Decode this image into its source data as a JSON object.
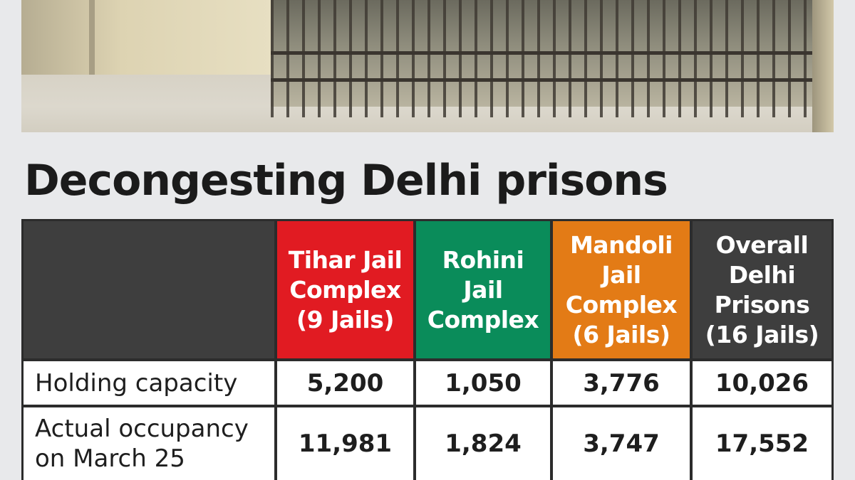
{
  "heading": "Decongesting Delhi prisons",
  "colors": {
    "tihar": "#e11b22",
    "rohini": "#0a8c5a",
    "mandoli": "#e37b16",
    "overall": "#3e3e3e"
  },
  "table": {
    "columns": [
      "Tihar Jail\nComplex\n(9 Jails)",
      "Rohini\nJail\nComplex",
      "Mandoli\nJail\nComplex\n(6 Jails)",
      "Overall\nDelhi\nPrisons\n(16 Jails)"
    ],
    "rows": [
      {
        "label": "Holding capacity",
        "values": [
          "5,200",
          "1,050",
          "3,776",
          "10,026"
        ]
      },
      {
        "label": "Actual occupancy\non March 25",
        "values": [
          "11,981",
          "1,824",
          "3,747",
          "17,552"
        ]
      }
    ]
  }
}
